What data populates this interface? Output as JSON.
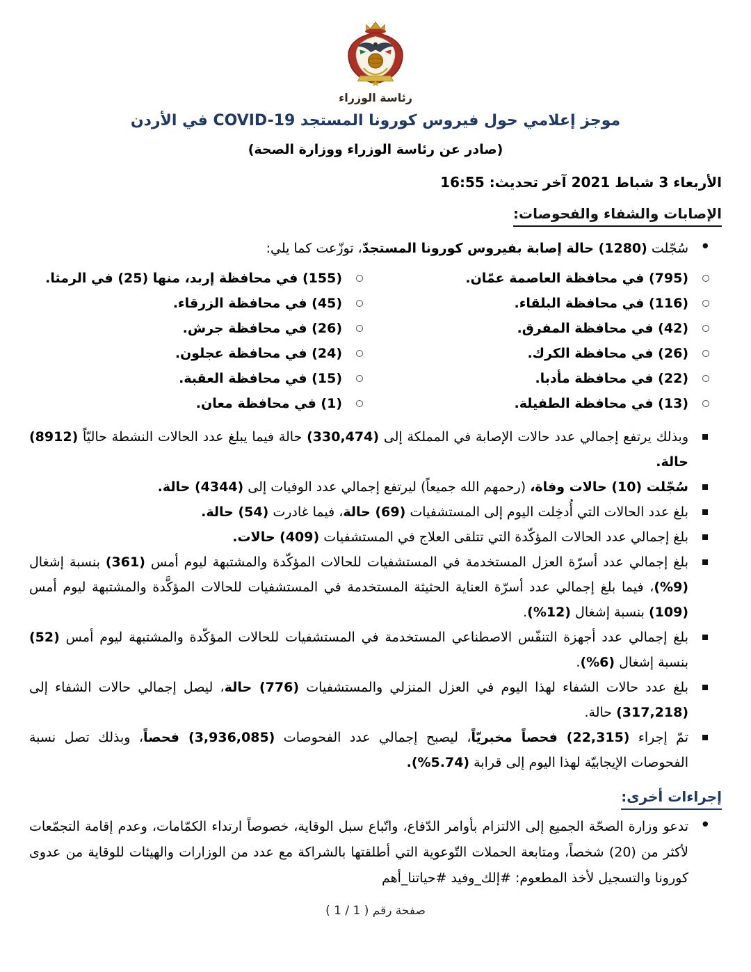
{
  "colors": {
    "title_navy": "#1f3864",
    "body_text": "#000000",
    "crest_red": "#ab3126",
    "crest_gold": "#c9a227"
  },
  "header": {
    "logo_caption": "رئاسة الوزراء",
    "title_segments": [
      {
        "t": "موجز إعلامي حول فيروس كورونا المستجد "
      },
      {
        "t": "COVID-19",
        "ltr": true
      },
      {
        "t": " في الأردن"
      }
    ],
    "subtitle": "(صادر عن رئاسة الوزراء ووزارة الصحة)",
    "date_line": "الأربعاء 3 شباط 2021 آخر تحديث: 16:55"
  },
  "sections": {
    "cases": {
      "header": "الإصابات والشفاء والفحوصات:",
      "intro_segments": [
        {
          "t": "سُجّلت "
        },
        {
          "t": "(1280)",
          "b": true,
          "ltr": true
        },
        {
          "t": " حالة إصابة بفيروس كورونا المستجدّ",
          "b": true
        },
        {
          "t": "، توزّعت كما يلي:"
        }
      ],
      "governorates": [
        "(795) في محافظة العاصمة عمّان.",
        "(116) في محافظة البلقاء.",
        "(42) في محافظة المفرق.",
        "(26) في محافظة الكرك.",
        "(22) في محافظة مأدبا.",
        "(13) في محافظة الطفيلة.",
        "(155) في محافظة إربد، منها (25) في الرمثا.",
        "(45) في محافظة الزرقاء.",
        "(26) في محافظة جرش.",
        "(24) في محافظة عجلون.",
        "(15) في محافظة العقبة.",
        "(1) في محافظة معان."
      ],
      "stats": [
        {
          "segments": [
            {
              "t": "وبذلك يرتفع إجمالي عدد حالات الإصابة في المملكة إلى "
            },
            {
              "t": "(330,474)",
              "b": true,
              "ltr": true
            },
            {
              "t": " حالة فيما يبلغ عدد الحالات النشطة حاليّاً "
            },
            {
              "t": "(8912)",
              "b": true,
              "ltr": true
            },
            {
              "t": " حالة.",
              "b": true
            }
          ]
        },
        {
          "segments": [
            {
              "t": "سُجّلت ",
              "b": true
            },
            {
              "t": "(10)",
              "b": true,
              "ltr": true
            },
            {
              "t": " حالات وفاة،",
              "b": true
            },
            {
              "t": " (رحمهم الله جميعاً) ليرتفع إجمالي عدد الوفيات إلى "
            },
            {
              "t": "(4344)",
              "b": true,
              "ltr": true
            },
            {
              "t": " حالة.",
              "b": true
            }
          ]
        },
        {
          "segments": [
            {
              "t": "بلغ عدد الحالات التي أُدخِلت اليوم إلى المستشفيات "
            },
            {
              "t": "(69)",
              "b": true,
              "ltr": true
            },
            {
              "t": " حالة",
              "b": true
            },
            {
              "t": "، فيما غادرت "
            },
            {
              "t": "(54)",
              "b": true,
              "ltr": true
            },
            {
              "t": " حالة.",
              "b": true
            }
          ]
        },
        {
          "segments": [
            {
              "t": "بلغ إجمالي عدد الحالات المؤكّدة التي تتلقى العلاج في المستشفيات "
            },
            {
              "t": "(409)",
              "b": true,
              "ltr": true
            },
            {
              "t": " حالات.",
              "b": true
            }
          ]
        },
        {
          "segments": [
            {
              "t": "بلغ إجمالي عدد أسرّة العزل المستخدمة في المستشفيات للحالات المؤكّدة والمشتبهة ليوم أمس "
            },
            {
              "t": "(361)",
              "b": true,
              "ltr": true
            },
            {
              "t": " بنسبة إشغال "
            },
            {
              "t": "(%9)",
              "b": true,
              "ltr": true
            },
            {
              "t": "، فيما بلغ إجمالي عدد أسرّة العناية الحثيثة المستخدمة في المستشفيات للحالات المؤكَّدة والمشتبهة ليوم أمس "
            },
            {
              "t": "(109)",
              "b": true,
              "ltr": true
            },
            {
              "t": " بنسبة إشغال "
            },
            {
              "t": "(%12)",
              "b": true,
              "ltr": true
            },
            {
              "t": "."
            }
          ]
        },
        {
          "segments": [
            {
              "t": "بلغ إجمالي عدد أجهزة التنفّس الاصطناعي المستخدمة في المستشفيات للحالات المؤكّدة والمشتبهة ليوم أمس "
            },
            {
              "t": "(52)",
              "b": true,
              "ltr": true
            },
            {
              "t": " بنسبة إشغال "
            },
            {
              "t": "(%6)",
              "b": true,
              "ltr": true
            },
            {
              "t": "."
            }
          ]
        },
        {
          "segments": [
            {
              "t": "بلغ عدد حالات الشفاء لهذا اليوم في العزل المنزلي والمستشفيات "
            },
            {
              "t": "(776)",
              "b": true,
              "ltr": true
            },
            {
              "t": " حالة",
              "b": true
            },
            {
              "t": "، ليصل إجمالي حالات الشفاء إلى "
            },
            {
              "t": "(317,218)",
              "b": true,
              "ltr": true
            },
            {
              "t": " حالة."
            }
          ]
        },
        {
          "segments": [
            {
              "t": "تمّ إجراء "
            },
            {
              "t": "(22,315)",
              "b": true,
              "ltr": true
            },
            {
              "t": " فحصاً مخبريّاً",
              "b": true
            },
            {
              "t": "، ليصبح إجمالي عدد الفحوصات "
            },
            {
              "t": "(3,936,085)",
              "b": true,
              "ltr": true
            },
            {
              "t": " فحصاً",
              "b": true
            },
            {
              "t": "، وبذلك تصل نسبة الفحوصات الإيجابيّة لهذا اليوم إلى قرابة "
            },
            {
              "t": "(%5.74)",
              "b": true,
              "ltr": true
            },
            {
              "t": ".",
              "b": true
            }
          ]
        }
      ]
    },
    "other": {
      "header": "إجراءات أخرى:",
      "bullet_segments": [
        {
          "t": "تدعو وزارة الصحّة الجميع إلى الالتزام بأوامر الدّفاع، واتّباع سبل الوقاية، خصوصاً ارتداء الكمّامات، وعدم إقامة التجمّعات لأكثر من "
        },
        {
          "t": "(20)",
          "ltr": true
        },
        {
          "t": " شخصاً، ومتابعة الحملات التّوعوية التي أطلقتها بالشراكة مع عدد من الوزارات والهيئات للوقاية من عدوى كورونا والتسجيل لأخذ المطعوم: #إلك_وفيد #حياتنا_أهم"
        }
      ]
    }
  },
  "footer": {
    "page_label": "صفحة رقم ( 1 / 1 )"
  }
}
